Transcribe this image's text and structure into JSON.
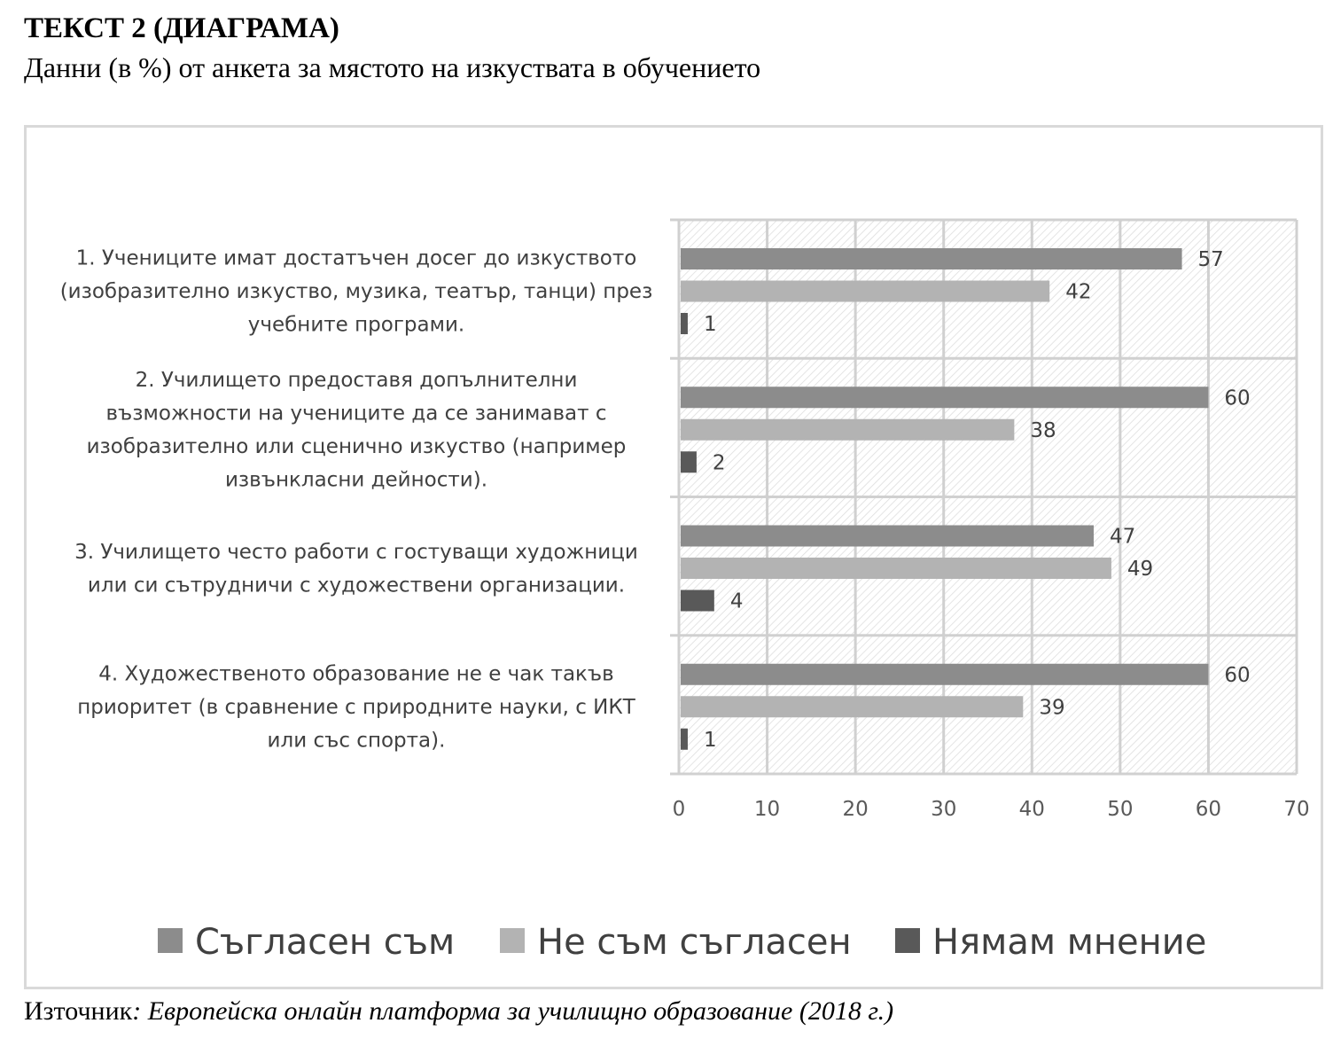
{
  "heading": "ТЕКСТ 2 (ДИАГРАМА)",
  "subheading": "Данни (в %) от анкета за мястото на изкуствата в обучението",
  "source": {
    "label": "Източник",
    "title": ": Европейска онлайн платформа за училищно образование (2018 г.)"
  },
  "chart_data": {
    "type": "bar",
    "orientation": "horizontal",
    "categories": [
      "1. Учениците имат достатъчен досег до изкуството (изобразително изкуство, музика, театър, танци) през учебните програми.",
      "2. Училището предоставя допълнителни възможности на учениците да се занимават с изобразително или сценично изкуство (например извънкласни дейности).",
      "3. Училището често работи с гостуващи художници или си сътрудничи с художествени организации.",
      "4. Художественото образование не е чак такъв приоритет (в сравнение с природните науки, с ИКТ или със спорта)."
    ],
    "category_lines": [
      [
        "1. Учениците имат достатъчен досег до изкуството",
        "(изобразително изкуство, музика, театър, танци) през",
        "учебните програми."
      ],
      [
        "2. Училището предоставя допълнителни",
        "възможности на учениците да се занимават с",
        "изобразително или сценично изкуство (например",
        "извънкласни дейности)."
      ],
      [
        "3. Училището често работи с гостуващи художници",
        "или си сътрудничи с художествени организации."
      ],
      [
        "4. Художественото образование не е чак такъв",
        "приоритет (в сравнение с природните науки, с ИКТ",
        "или със спорта)."
      ]
    ],
    "series": [
      {
        "name": "Съгласен съм",
        "values": [
          57,
          60,
          47,
          60
        ],
        "color": "#8c8c8c"
      },
      {
        "name": "Не съм съгласен",
        "values": [
          42,
          38,
          49,
          39
        ],
        "color": "#b3b3b3"
      },
      {
        "name": "Нямам мнение",
        "values": [
          1,
          2,
          4,
          1
        ],
        "color": "#595959"
      }
    ],
    "xlim": [
      0,
      70
    ],
    "xticks": [
      "0",
      "10",
      "20",
      "30",
      "40",
      "50",
      "60",
      "70"
    ],
    "grid": true,
    "legend_position": "bottom",
    "data_labels": true
  }
}
